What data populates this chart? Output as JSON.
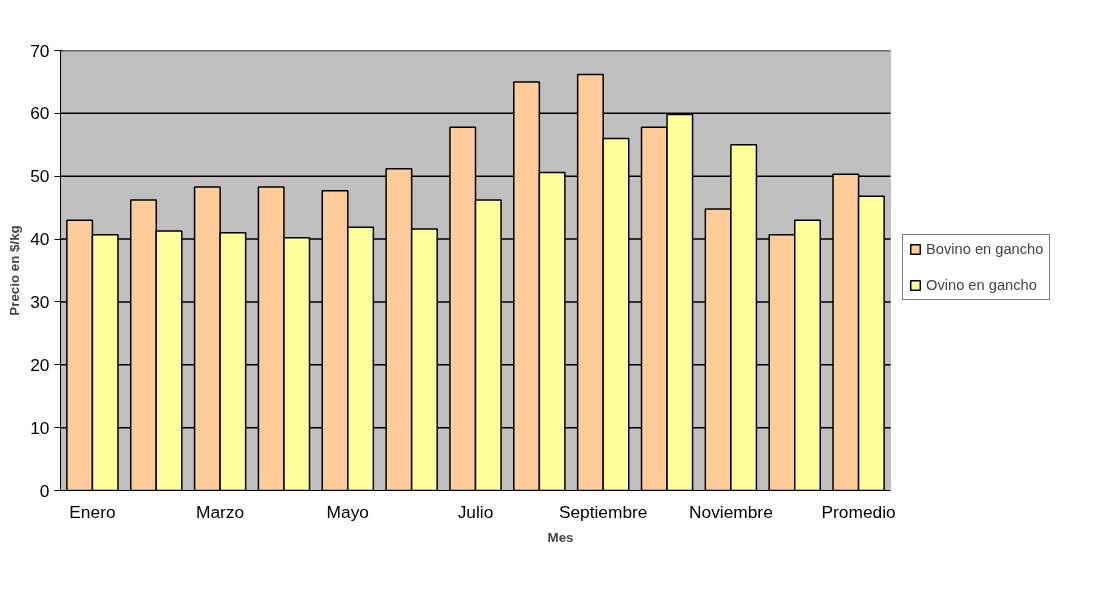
{
  "chart_data": {
    "type": "bar",
    "xlabel": "Mes",
    "ylabel": "Precio en $/kg",
    "categories": [
      "Enero",
      null,
      "Marzo",
      null,
      "Mayo",
      null,
      "Julio",
      null,
      "Septiembre",
      null,
      "Noviembre",
      null,
      "Promedio"
    ],
    "series": [
      {
        "name": "Bovino en gancho",
        "color": "#ffcc99",
        "values": [
          43.0,
          46.2,
          48.3,
          48.3,
          47.7,
          51.2,
          57.8,
          65.0,
          66.2,
          57.8,
          44.8,
          40.7,
          50.3
        ]
      },
      {
        "name": "Ovino en gancho",
        "color": "#ffff99",
        "values": [
          40.7,
          41.3,
          41.0,
          40.2,
          41.9,
          41.6,
          46.2,
          50.6,
          56.0,
          59.8,
          55.0,
          43.0,
          46.8
        ]
      }
    ],
    "ylim": [
      0,
      70
    ],
    "yticks": [
      0,
      10,
      20,
      30,
      40,
      50,
      60,
      70
    ],
    "grid": "y",
    "legend": "right"
  }
}
